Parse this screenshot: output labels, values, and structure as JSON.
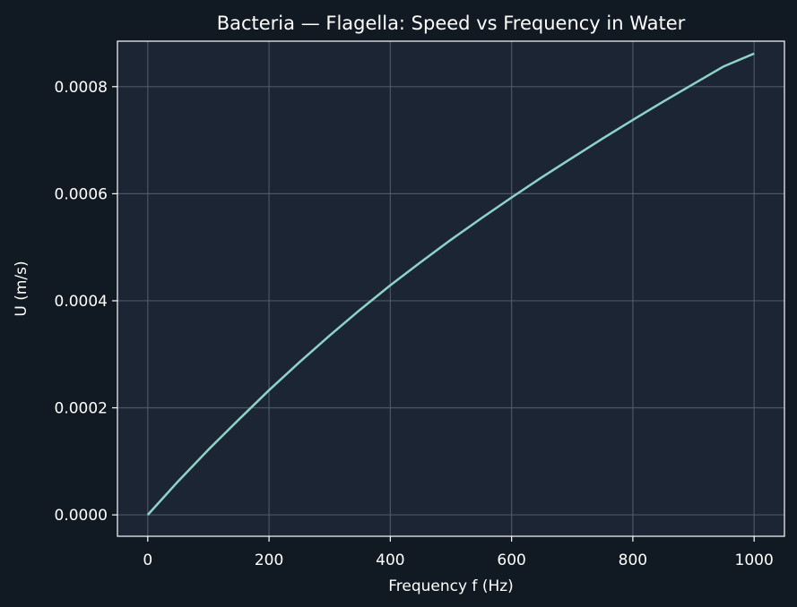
{
  "chart_data": {
    "type": "line",
    "title": "Bacteria — Flagella: Speed vs Frequency in Water",
    "xlabel": "Frequency f (Hz)",
    "ylabel": "U (m/s)",
    "xlim": [
      -50,
      1050
    ],
    "ylim": [
      -4e-05,
      0.000885
    ],
    "xticks": [
      0,
      200,
      400,
      600,
      800,
      1000
    ],
    "xtick_labels": [
      "0",
      "200",
      "400",
      "600",
      "800",
      "1000"
    ],
    "yticks": [
      0,
      0.0002,
      0.0004,
      0.0006,
      0.0008
    ],
    "ytick_labels": [
      "0.0000",
      "0.0002",
      "0.0004",
      "0.0006",
      "0.0008"
    ],
    "grid": true,
    "series": [
      {
        "x": [
          0,
          50,
          100,
          150,
          200,
          250,
          300,
          350,
          400,
          450,
          500,
          550,
          600,
          650,
          700,
          750,
          800,
          850,
          900,
          950,
          1000
        ],
        "y": [
          0,
          6.25e-05,
          0.000122,
          0.000178,
          0.000233,
          0.000285,
          0.000335,
          0.000383,
          0.000429,
          0.000472,
          0.000514,
          0.000554,
          0.000593,
          0.000631,
          0.000667,
          0.000703,
          0.000738,
          0.000772,
          0.000805,
          0.000838,
          0.000862
        ],
        "color": "#8dd3c7"
      }
    ],
    "colors": {
      "figure_bg": "#111922",
      "axes_bg": "#1c2533",
      "grid": "#5c6675",
      "spine": "#ffffff",
      "text": "#ffffff"
    }
  }
}
